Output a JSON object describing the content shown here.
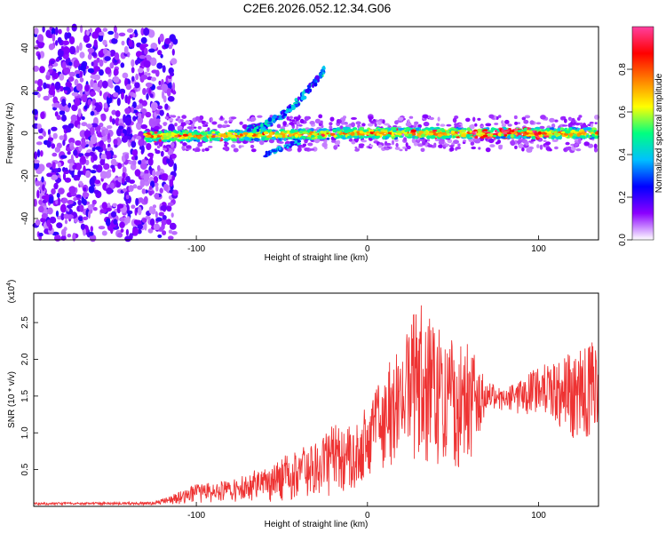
{
  "title": "C2E6.2026.052.12.34.G06",
  "chart_data": [
    {
      "type": "heatmap",
      "xlabel": "Height of straight line (km)",
      "ylabel": "Frequency (Hz)",
      "xlim": [
        -195,
        135
      ],
      "ylim": [
        -50,
        50
      ],
      "xticks": [
        -100,
        0,
        100
      ],
      "yticks": [
        -40,
        -20,
        0,
        20,
        40
      ],
      "colorbar": {
        "label": "Normalized spectral amplitude",
        "range": [
          0,
          1
        ],
        "ticks": [
          "0.0",
          "0.2",
          "0.4",
          "0.6",
          "0.8"
        ],
        "tick_values": [
          0.0,
          0.2,
          0.4,
          0.6,
          0.8
        ],
        "colors": [
          "#ffffff",
          "#8b00ff",
          "#0000ff",
          "#00c0ff",
          "#00ff80",
          "#ffff00",
          "#ff8000",
          "#ff0000",
          "#ff40a0"
        ]
      },
      "features": {
        "noise_region_x": [
          -195,
          -120
        ],
        "main_band": {
          "x": [
            -130,
            135
          ],
          "y": [
            -2,
            2
          ]
        },
        "rising_arc": {
          "x": [
            -70,
            -25
          ],
          "y": [
            2,
            30
          ]
        },
        "lower_arc": {
          "x": [
            -60,
            -40
          ],
          "y": [
            -10,
            -4
          ]
        }
      }
    },
    {
      "type": "line",
      "xlabel": "Height of straight line (km)",
      "ylabel": "SNR (10 * v/v)",
      "scale_label": "(x10",
      "scale_exp": "4",
      "scale_close": ")",
      "xlim": [
        -195,
        135
      ],
      "ylim": [
        0,
        2.9
      ],
      "xticks": [
        -100,
        0,
        100
      ],
      "yticks": [
        "0.5",
        "1.0",
        "1.5",
        "2.0",
        "2.5"
      ],
      "ytick_values": [
        0.5,
        1.0,
        1.5,
        2.0,
        2.5
      ],
      "color": "#ee3333",
      "envelope": {
        "x": [
          -195,
          -125,
          -115,
          -100,
          -80,
          -60,
          -40,
          -20,
          -5,
          0,
          10,
          20,
          30,
          40,
          50,
          60,
          70,
          80,
          100,
          120,
          135
        ],
        "lower": [
          0.02,
          0.02,
          0.02,
          0.05,
          0.05,
          0.05,
          0.1,
          0.15,
          0.2,
          0.4,
          0.5,
          0.6,
          0.6,
          0.5,
          0.5,
          0.6,
          1.3,
          1.3,
          1.2,
          0.9,
          0.8
        ],
        "upper": [
          0.05,
          0.06,
          0.15,
          0.3,
          0.35,
          0.55,
          0.8,
          1.1,
          1.2,
          1.4,
          1.9,
          2.2,
          2.8,
          2.5,
          2.4,
          2.2,
          1.7,
          1.6,
          1.9,
          2.1,
          2.3
        ]
      }
    }
  ]
}
